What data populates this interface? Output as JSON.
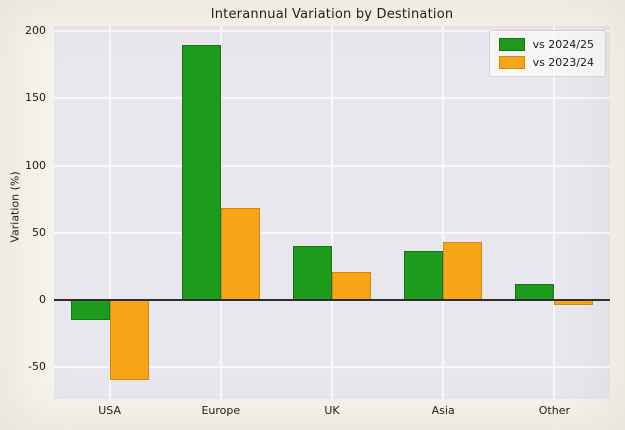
{
  "chart_data": {
    "type": "bar",
    "title": "Interannual Variation by Destination",
    "xlabel": "",
    "ylabel": "Variation (%)",
    "categories": [
      "USA",
      "Europe",
      "UK",
      "Asia",
      "Other"
    ],
    "series": [
      {
        "name": "vs 2024/25",
        "color": "#1d9b1d",
        "edge_color": "#157515",
        "values": [
          -15,
          190,
          40,
          36,
          12
        ]
      },
      {
        "name": "vs 2023/24",
        "color": "#f8a417",
        "edge_color": "#d08a10",
        "values": [
          -60,
          68,
          21,
          43,
          -4
        ]
      }
    ],
    "yticks": [
      -50,
      0,
      50,
      100,
      150,
      200
    ],
    "ylim": [
      -74,
      204
    ],
    "grid": true,
    "legend_position": "upper right",
    "colors": {
      "fig_bg": "#f7f4ec",
      "plot_bg": "#e8e7ee",
      "gridline": "#f9f8fc",
      "zero_line": "#2e2e2e",
      "text": "#1b1b1b"
    }
  }
}
